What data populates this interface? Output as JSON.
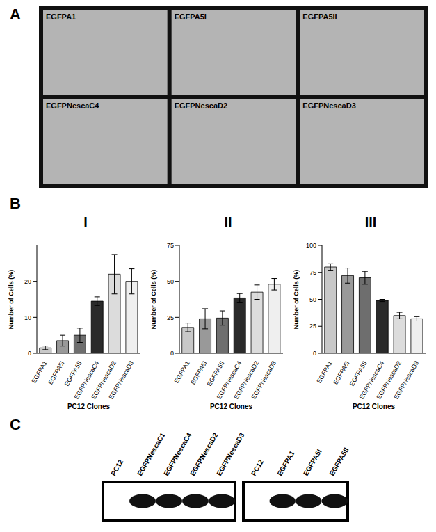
{
  "panel_labels": [
    "A",
    "B",
    "C"
  ],
  "images": {
    "labels": [
      "EGFPA1",
      "EGFPA5I",
      "EGFPA5II",
      "EGFPNescaC4",
      "EGFPNescaD2",
      "EGFPNescaD3"
    ]
  },
  "blot": {
    "left_lanes": [
      "PC12",
      "EGFPNescaC1",
      "EGFPNescaC4",
      "EGFPNescaD2",
      "EGFPNescaD3"
    ],
    "right_lanes": [
      "PC12",
      "EGFPA1",
      "EGFPA5I",
      "EGFPA5II"
    ]
  },
  "chart_data": [
    {
      "type": "bar",
      "title": "I",
      "x_label": "PC12 Clones",
      "y_label": "Number of Cells (%)",
      "categories": [
        "EGFPA1",
        "EGFPA5I",
        "EGFPA5II",
        "EGFPNescaC4",
        "EGFPNescaD2",
        "EGFPNescaD3"
      ],
      "values": [
        1.5,
        3.5,
        5,
        14.5,
        22,
        20
      ],
      "errors": [
        0.5,
        1.5,
        2,
        1.2,
        5.5,
        3.5
      ],
      "colors": [
        "#c8c8c8",
        "#999999",
        "#6e6e6e",
        "#2a2a2a",
        "#dcdcdc",
        "#efefef"
      ],
      "ylim": [
        0,
        30
      ],
      "yticks": [
        0,
        10,
        20
      ]
    },
    {
      "type": "bar",
      "title": "II",
      "x_label": "PC12 Clones",
      "y_label": "Number of Cells (%)",
      "categories": [
        "EGFPA1",
        "EGFPA5I",
        "EGFPA5II",
        "EGFPNescaC4",
        "EGFPNescaD2",
        "EGFPNescaD3"
      ],
      "values": [
        18,
        24,
        24.5,
        38.5,
        42.5,
        48
      ],
      "errors": [
        3,
        7,
        5,
        3,
        5,
        4
      ],
      "colors": [
        "#c8c8c8",
        "#999999",
        "#6e6e6e",
        "#2a2a2a",
        "#dcdcdc",
        "#efefef"
      ],
      "ylim": [
        0,
        75
      ],
      "yticks": [
        0,
        25,
        50,
        75
      ]
    },
    {
      "type": "bar",
      "title": "III",
      "x_label": "PC12 Clones",
      "y_label": "Number of Cells (%)",
      "categories": [
        "EGFPA1",
        "EGFPA5I",
        "EGFPA5II",
        "EGFPNescaC4",
        "EGFPNescaD2",
        "EGFPNescaD3"
      ],
      "values": [
        80,
        72,
        70,
        49,
        35,
        32
      ],
      "errors": [
        3,
        7,
        6,
        1,
        3,
        2
      ],
      "colors": [
        "#c8c8c8",
        "#999999",
        "#6e6e6e",
        "#2a2a2a",
        "#dcdcdc",
        "#efefef"
      ],
      "ylim": [
        0,
        100
      ],
      "yticks": [
        0,
        25,
        50,
        75,
        100
      ]
    }
  ]
}
